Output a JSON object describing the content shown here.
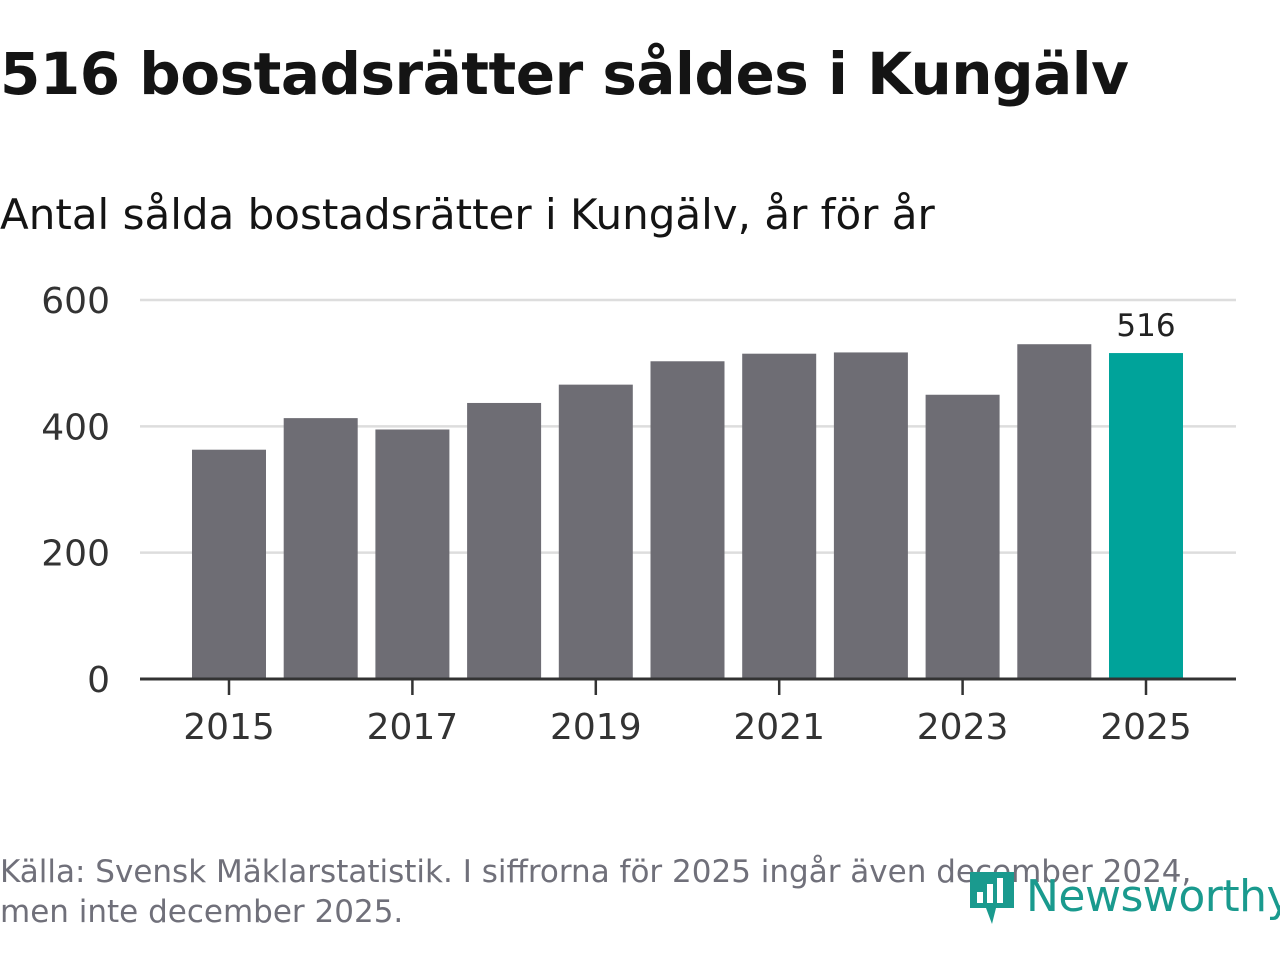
{
  "header": {
    "title": "516 bostadsrätter såldes i Kungälv",
    "subtitle": "Antal sålda bostadsrätter i Kungälv, år för år"
  },
  "footer": {
    "source": "Källa: Svensk Mäklarstatistik. I siffrorna för 2025 ingår även december 2024, men inte december 2025.",
    "brand": "Newsworthy"
  },
  "colors": {
    "bar": "#6e6d74",
    "highlight": "#00a39a",
    "grid": "#dddddd",
    "axis": "#333333",
    "brand": "#1a9a8e"
  },
  "chart_data": {
    "type": "bar",
    "title": "Antal sålda bostadsrätter i Kungälv, år för år",
    "xlabel": "",
    "ylabel": "",
    "categories": [
      "2015",
      "2016",
      "2017",
      "2018",
      "2019",
      "2020",
      "2021",
      "2022",
      "2023",
      "2024",
      "2025"
    ],
    "values": [
      363,
      413,
      395,
      437,
      466,
      503,
      515,
      517,
      450,
      530,
      516
    ],
    "highlight_index": 10,
    "data_labels": [
      {
        "index": 10,
        "text": "516"
      }
    ],
    "x_tick_labels": [
      "2015",
      "2017",
      "2019",
      "2021",
      "2023",
      "2025"
    ],
    "y_ticks": [
      "0",
      "200",
      "400",
      "600"
    ],
    "ylim": [
      0,
      600
    ],
    "grid": true,
    "legend": "none"
  }
}
